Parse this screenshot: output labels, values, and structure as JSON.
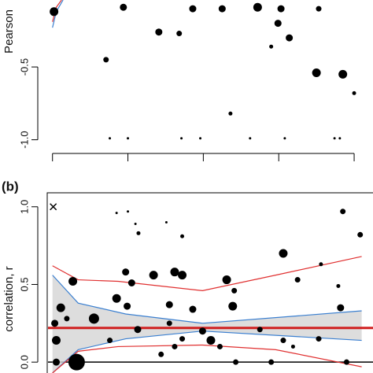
{
  "chart_data": [
    {
      "type": "scatter",
      "y_label": "Pearson",
      "xlim": [
        -0.07,
        4.25
      ],
      "xticks": [
        0,
        1,
        2,
        3,
        4
      ],
      "ylim": [
        -1.04,
        -0.04
      ],
      "yticks": [
        -0.5,
        {
          "value": -1,
          "label": "-1.0"
        }
      ],
      "series": [
        {
          "color": "#000000",
          "marker": "circle",
          "x": [
            0.02,
            0.94,
            1.41,
            1.68,
            1.86,
            0.71,
            2.25,
            2.72,
            3.03,
            2.99,
            3.14,
            2.9,
            3.5,
            3.85,
            2.36,
            4.0,
            0.76,
            1.0,
            1.71,
            1.96,
            2.62,
            3.08,
            3.74,
            3.81,
            3.53
          ],
          "values": [
            -0.12,
            -0.09,
            -0.26,
            -0.27,
            -0.1,
            -0.45,
            -0.1,
            -0.09,
            -0.1,
            -0.2,
            -0.3,
            -0.36,
            -0.54,
            -0.55,
            -0.82,
            -0.68,
            -0.99,
            -0.99,
            -0.99,
            -0.99,
            -0.99,
            -0.99,
            -0.99,
            -0.99,
            -0.1
          ],
          "sizes": [
            5,
            4,
            4,
            3,
            4,
            3,
            4,
            5,
            4,
            4,
            4,
            2,
            5,
            5,
            2,
            2,
            1,
            1,
            1,
            1,
            1,
            1,
            1,
            1,
            3
          ]
        },
        {
          "color": "#3a7fd0",
          "x": [
            0,
            0.05,
            0.14
          ],
          "values": [
            -0.23,
            -0.12,
            -0.04
          ]
        },
        {
          "color": "#e03030",
          "x": [
            0,
            0.05,
            0.12
          ],
          "values": [
            -0.19,
            -0.09,
            -0.04
          ]
        }
      ]
    },
    {
      "type": "scatter",
      "panel_label": "(b)",
      "y_label": "correlation, r",
      "xlim": [
        -0.07,
        4.25
      ],
      "ylim": [
        -0.07,
        1.09
      ],
      "yticks": [
        {
          "value": 0,
          "label": "0.0"
        },
        0.5,
        {
          "value": 1,
          "label": "1.0"
        }
      ],
      "reference_line": 0,
      "series": [
        {
          "color": "#3a7fd0",
          "fill_to_next": "#d4d4d4",
          "x": [
            0,
            0.34,
            0.97,
            1.99,
            4.1
          ],
          "values": [
            0.56,
            0.38,
            0.31,
            0.25,
            0.33
          ]
        },
        {
          "color": "#3a7fd0",
          "x": [
            0,
            0.34,
            0.97,
            1.99,
            4.1
          ],
          "values": [
            -0.07,
            0.08,
            0.15,
            0.2,
            0.14
          ]
        },
        {
          "color": "#e03030",
          "x": [
            0,
            0.34,
            0.87,
            1.99,
            2.96,
            4.1
          ],
          "values": [
            0.62,
            0.53,
            0.52,
            0.46,
            0.56,
            0.68
          ]
        },
        {
          "color": "#e03030",
          "x": [
            0,
            0.34,
            0.87,
            1.99,
            2.96,
            4.1
          ],
          "values": [
            -0.07,
            0.07,
            0.1,
            0.11,
            0.08,
            -0.03
          ]
        },
        {
          "color": "#d02020",
          "width": 3,
          "x": [
            -0.07,
            4.25
          ],
          "values": [
            0.22,
            0.22
          ]
        },
        {
          "color": "#000000",
          "marker": "circle",
          "x": [
            0.85,
            1.0,
            1.1,
            1.14,
            1.51,
            1.72,
            3.85,
            4.08,
            0.27,
            0.97,
            1.05,
            1.34,
            1.62,
            1.72,
            2.31,
            2.41,
            3.06,
            3.25,
            3.56,
            3.79,
            0.85,
            0.99,
            0.11,
            1.55,
            1.55,
            0.55,
            1.86,
            2.39,
            1.99,
            0.05,
            0.05,
            0.76,
            0.32,
            1.13,
            1.44,
            1.62,
            1.72,
            2.1,
            2.22,
            2.43,
            2.75,
            2.9,
            3.06,
            3.53,
            3.82,
            3.19,
            3.9,
            0.03,
            0.19
          ],
          "values": [
            0.96,
            0.97,
            0.89,
            0.83,
            0.9,
            0.81,
            0.97,
            0.82,
            0.52,
            0.58,
            0.51,
            0.56,
            0.58,
            0.56,
            0.53,
            0.46,
            0.7,
            0.53,
            0.63,
            0.49,
            0.41,
            0.36,
            0.35,
            0.37,
            0.25,
            0.28,
            0.34,
            0.36,
            0.2,
            0.14,
            0.0,
            0.14,
            0.0,
            0.21,
            0.05,
            0.1,
            0.15,
            0.14,
            0.1,
            0.0,
            0.21,
            0.0,
            0.14,
            0.15,
            0.35,
            0.1,
            0.0,
            0.25,
            0.28
          ],
          "sizes": [
            1,
            1,
            1,
            2,
            1,
            2,
            3,
            3,
            5,
            4,
            4,
            5,
            5,
            5,
            5,
            3,
            5,
            3,
            2,
            2,
            5,
            4,
            5,
            4,
            3,
            6,
            4,
            5,
            4,
            5,
            4,
            3,
            10,
            4,
            3,
            3,
            3,
            5,
            3,
            3,
            3,
            3,
            3,
            3,
            4,
            2,
            3,
            4,
            3
          ]
        },
        {
          "color": "#000000",
          "marker": "cross",
          "x": [
            0.01
          ],
          "values": [
            1.0
          ]
        }
      ]
    }
  ]
}
